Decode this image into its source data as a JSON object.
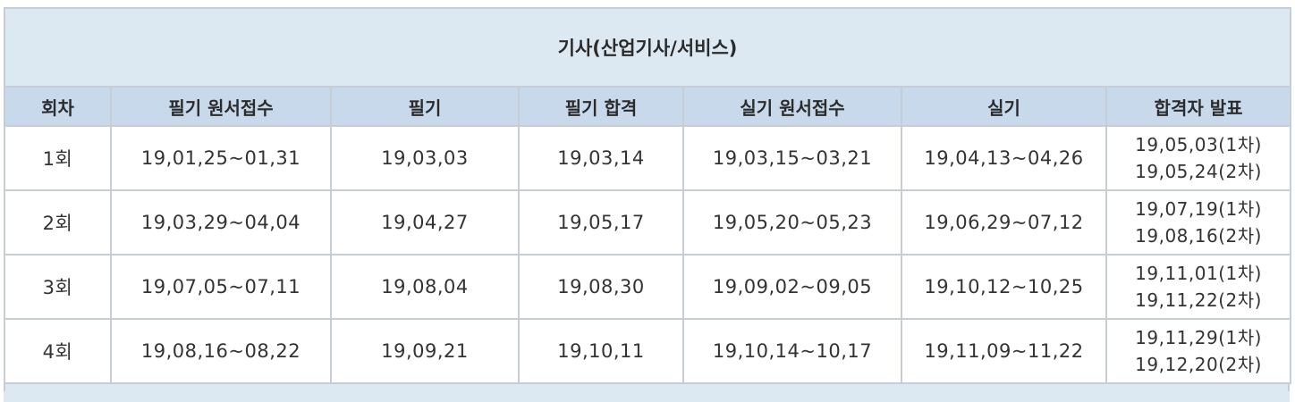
{
  "table": {
    "title": "기사(산업기사/서비스)",
    "headers": [
      "회차",
      "필기 원서접수",
      "필기",
      "필기 합격",
      "실기 원서접수",
      "실기",
      "합격자 발표"
    ],
    "rows": [
      {
        "round": "1회",
        "written_application": "19,01,25~01,31",
        "written_exam": "19,03,03",
        "written_pass": "19,03,14",
        "practical_application": "19,03,15~03,21",
        "practical_exam": "19,04,13~04,26",
        "announcement_1": "19,05,03(1차)",
        "announcement_2": "19,05,24(2차)"
      },
      {
        "round": "2회",
        "written_application": "19,03,29~04,04",
        "written_exam": "19,04,27",
        "written_pass": "19,05,17",
        "practical_application": "19,05,20~05,23",
        "practical_exam": "19,06,29~07,12",
        "announcement_1": "19,07,19(1차)",
        "announcement_2": "19,08,16(2차)"
      },
      {
        "round": "3회",
        "written_application": "19,07,05~07,11",
        "written_exam": "19,08,04",
        "written_pass": "19,08,30",
        "practical_application": "19,09,02~09,05",
        "practical_exam": "19,10,12~10,25",
        "announcement_1": "19,11,01(1차)",
        "announcement_2": "19,11,22(2차)"
      },
      {
        "round": "4회",
        "written_application": "19,08,16~08,22",
        "written_exam": "19,09,21",
        "written_pass": "19,10,11",
        "practical_application": "19,10,14~10,17",
        "practical_exam": "19,11,09~11,22",
        "announcement_1": "19,11,29(1차)",
        "announcement_2": "19,12,20(2차)"
      }
    ],
    "colors": {
      "title_bg": "#dde9f2",
      "header_bg": "#c8d9ec",
      "border": "#c6cdd4",
      "cell_bg": "#ffffff"
    }
  }
}
